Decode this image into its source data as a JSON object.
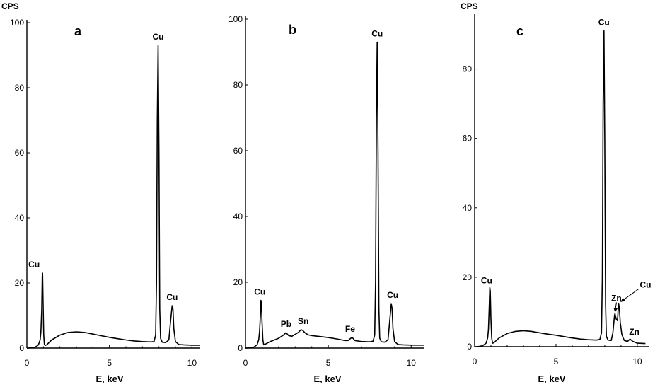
{
  "chart_data": [
    {
      "type": "line",
      "panel": "a",
      "ylabel": "CPS",
      "xlabel": "E, keV",
      "xlim": [
        0,
        10.5
      ],
      "ylim": [
        0,
        100
      ],
      "xticks": [
        0,
        5,
        10
      ],
      "yticks": [
        0,
        20,
        40,
        60,
        80,
        100
      ],
      "series": [
        {
          "x": [
            0,
            0.1,
            0.3,
            0.5,
            0.6,
            0.7,
            0.8,
            0.85,
            0.9,
            0.93,
            0.95,
            0.98,
            1.02,
            1.06,
            1.1,
            1.2,
            1.5,
            2.0,
            2.5,
            3.0,
            3.5,
            4.0,
            4.5,
            5.0,
            5.5,
            6.0,
            6.5,
            7.0,
            7.5,
            7.7,
            7.8,
            7.85,
            7.9,
            7.95,
            8.0,
            8.05,
            8.1,
            8.2,
            8.4,
            8.6,
            8.7,
            8.8,
            8.85,
            8.9,
            9.0,
            9.2,
            9.5,
            10.0,
            10.5
          ],
          "y": [
            0,
            0,
            0.1,
            0.3,
            0.6,
            1.0,
            2.5,
            5,
            12,
            22,
            23,
            14,
            4,
            1.2,
            0.8,
            1.0,
            2.5,
            4.0,
            4.8,
            5.0,
            4.8,
            4.3,
            3.8,
            3.3,
            2.9,
            2.5,
            2.2,
            2.0,
            1.9,
            2.0,
            4,
            20,
            70,
            93,
            60,
            12,
            3,
            1.8,
            1.7,
            2.5,
            8,
            13,
            12,
            6,
            2,
            1.1,
            1.0,
            0.9,
            0.9
          ]
        }
      ],
      "annotations": [
        {
          "text": "Cu",
          "x": 0.95,
          "y": 23
        },
        {
          "text": "Cu",
          "x": 7.95,
          "y": 93
        },
        {
          "text": "Cu",
          "x": 8.8,
          "y": 13
        }
      ]
    },
    {
      "type": "line",
      "panel": "b",
      "xlabel": "E, keV",
      "xlim": [
        0,
        10.8
      ],
      "ylim": [
        0,
        100
      ],
      "xticks": [
        0,
        5,
        10
      ],
      "yticks": [
        0,
        20,
        40,
        60,
        80,
        100
      ],
      "series": [
        {
          "x": [
            0,
            0.1,
            0.3,
            0.5,
            0.7,
            0.8,
            0.85,
            0.9,
            0.93,
            0.96,
            1.0,
            1.05,
            1.1,
            1.2,
            1.5,
            2.0,
            2.3,
            2.45,
            2.6,
            2.8,
            3.0,
            3.2,
            3.35,
            3.45,
            3.6,
            3.8,
            4.0,
            4.5,
            5.0,
            5.5,
            6.0,
            6.2,
            6.35,
            6.45,
            6.6,
            7.0,
            7.5,
            7.7,
            7.8,
            7.85,
            7.9,
            7.95,
            8.0,
            8.05,
            8.1,
            8.2,
            8.4,
            8.6,
            8.7,
            8.8,
            8.85,
            8.9,
            9.0,
            9.2,
            9.5,
            10.0,
            10.8
          ],
          "y": [
            0,
            0,
            0.1,
            0.3,
            1.0,
            2.5,
            5,
            10,
            14.5,
            14,
            8,
            2.5,
            1.0,
            1.2,
            2.0,
            3.0,
            4.0,
            4.7,
            3.8,
            3.6,
            4.2,
            4.8,
            5.6,
            5.4,
            4.6,
            4.0,
            3.8,
            3.5,
            3.2,
            2.8,
            2.3,
            2.3,
            3.0,
            3.2,
            2.3,
            2.0,
            1.9,
            2.1,
            4,
            20,
            70,
            93,
            60,
            12,
            3,
            1.9,
            1.8,
            2.5,
            8,
            13.5,
            12,
            6,
            2,
            1.1,
            1.0,
            0.9,
            0.9
          ]
        }
      ],
      "annotations": [
        {
          "text": "Cu",
          "x": 0.95,
          "y": 14.5
        },
        {
          "text": "Pb",
          "x": 2.45,
          "y": 4.7
        },
        {
          "text": "Sn",
          "x": 3.4,
          "y": 5.6
        },
        {
          "text": "Fe",
          "x": 6.4,
          "y": 3.2
        },
        {
          "text": "Cu",
          "x": 7.95,
          "y": 93
        },
        {
          "text": "Cu",
          "x": 8.8,
          "y": 13.5
        }
      ]
    },
    {
      "type": "line",
      "panel": "c",
      "ylabel": "CPS",
      "xlabel": "E, keV",
      "xlim": [
        0,
        10.7
      ],
      "ylim": [
        0,
        95
      ],
      "xticks": [
        0,
        5,
        10
      ],
      "yticks": [
        0,
        20,
        40,
        60,
        80
      ],
      "series": [
        {
          "x": [
            0,
            0.1,
            0.3,
            0.5,
            0.7,
            0.8,
            0.85,
            0.9,
            0.93,
            0.96,
            1.0,
            1.05,
            1.1,
            1.2,
            1.5,
            2.0,
            2.5,
            3.0,
            3.5,
            4.0,
            4.5,
            5.0,
            5.5,
            6.0,
            6.5,
            7.0,
            7.5,
            7.7,
            7.8,
            7.85,
            7.9,
            7.95,
            8.0,
            8.05,
            8.1,
            8.2,
            8.4,
            8.5,
            8.6,
            8.63,
            8.7,
            8.78,
            8.85,
            8.9,
            8.95,
            9.05,
            9.2,
            9.4,
            9.55,
            9.7,
            10.0,
            10.5
          ],
          "y": [
            0,
            0,
            0.1,
            0.3,
            1.0,
            2.5,
            5,
            12,
            17,
            16,
            8,
            2.5,
            1.0,
            1.2,
            2.5,
            3.8,
            4.4,
            4.6,
            4.4,
            4.0,
            3.6,
            3.3,
            2.9,
            2.5,
            2.2,
            2.0,
            1.9,
            2.1,
            4,
            20,
            70,
            91,
            60,
            12,
            3,
            1.9,
            1.8,
            4,
            9,
            9.5,
            8,
            7.5,
            12.5,
            11,
            7,
            3.5,
            1.8,
            1.5,
            2.2,
            1.6,
            1.0,
            0.9
          ]
        }
      ],
      "annotations": [
        {
          "text": "Cu",
          "x": 0.95,
          "y": 17
        },
        {
          "text": "Cu",
          "x": 7.95,
          "y": 91
        },
        {
          "text": "Zn",
          "x": 8.63,
          "y": 9.5
        },
        {
          "text": "Cu",
          "x": 8.85,
          "y": 12.5
        },
        {
          "text": "Zn",
          "x": 9.55,
          "y": 2.2
        }
      ]
    }
  ]
}
